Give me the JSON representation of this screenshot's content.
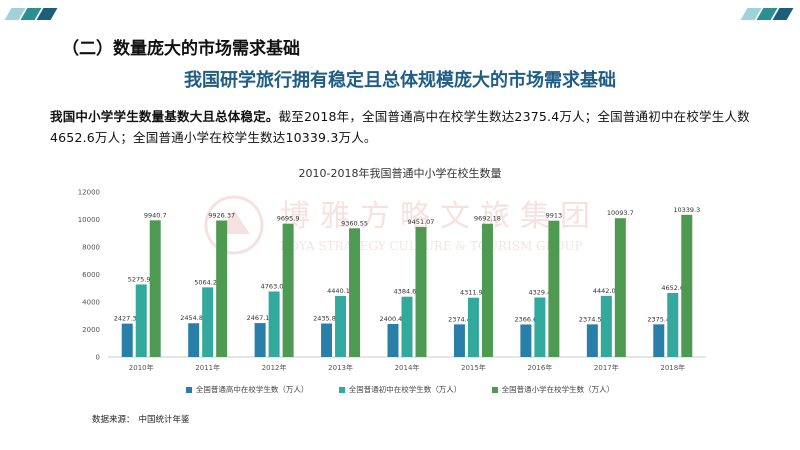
{
  "section_title": "（二）数量庞大的市场需求基础",
  "main_title": "我国研学旅行拥有稳定且总体规模庞大的市场需求基础",
  "paragraph": {
    "bold": "我国中小学学生数量基数大且总体稳定。",
    "text": "截至2018年，全国普通高中在校学生数达2375.4万人；全国普通初中在校学生人数4652.6万人；全国普通小学在校学生数达10339.3万人。"
  },
  "chart_data": {
    "type": "bar",
    "title": "2010-2018年我国普通中小学在校生数量",
    "categories": [
      "2010年",
      "2011年",
      "2012年",
      "2013年",
      "2014年",
      "2015年",
      "2016年",
      "2017年",
      "2018年"
    ],
    "ylim": [
      0,
      12000
    ],
    "yticks": [
      "0",
      "2000",
      "4000",
      "6000",
      "8000",
      "10000",
      "12000"
    ],
    "series": [
      {
        "name": "全国普通高中在校学生数（万人）",
        "color": "#2a7fa8",
        "values": [
          2427.34,
          2454.82,
          2467.17,
          2435.88,
          2400.47,
          2374.4,
          2366.6,
          2374.55,
          2375.4
        ],
        "labels": [
          "2427.34",
          "2454.82",
          "2467.17",
          "2435.88",
          "2400.47",
          "2374.4",
          "2366.6",
          "2374.55",
          "2375.4"
        ]
      },
      {
        "name": "全国普通初中在校学生数（万人）",
        "color": "#33a89c",
        "values": [
          5275.93,
          5064.25,
          4763.06,
          4440.12,
          4384.63,
          4311.95,
          4329.4,
          4442.06,
          4652.6
        ],
        "labels": [
          "5275.93",
          "5064.25",
          "4763.06",
          "4440.12",
          "4384.63",
          "4311.95",
          "4329.4",
          "4442.06",
          "4652.6"
        ]
      },
      {
        "name": "全国普通小学在校学生数（万人）",
        "color": "#4f9a52",
        "values": [
          9940.7,
          9926.37,
          9695.9,
          9360.55,
          9451.07,
          9692.18,
          9913,
          10093.7,
          10339.3
        ],
        "labels": [
          "9940.7",
          "9926.37",
          "9695.9",
          "9360.55",
          "9451.07",
          "9692.18",
          "9913",
          "10093.7",
          "10339.3"
        ]
      }
    ],
    "legend": "bottom",
    "grid": false
  },
  "source": {
    "label": "数据来源：",
    "value": "中国统计年鉴"
  },
  "watermark": {
    "text_cn": "博雅方略文旅集团",
    "text_en": "BOYA STRATEGY CULTURE & TOURISM GROUP"
  },
  "colors": {
    "title_blue": "#1f5d86",
    "deco_teal": "#2a8f95"
  }
}
